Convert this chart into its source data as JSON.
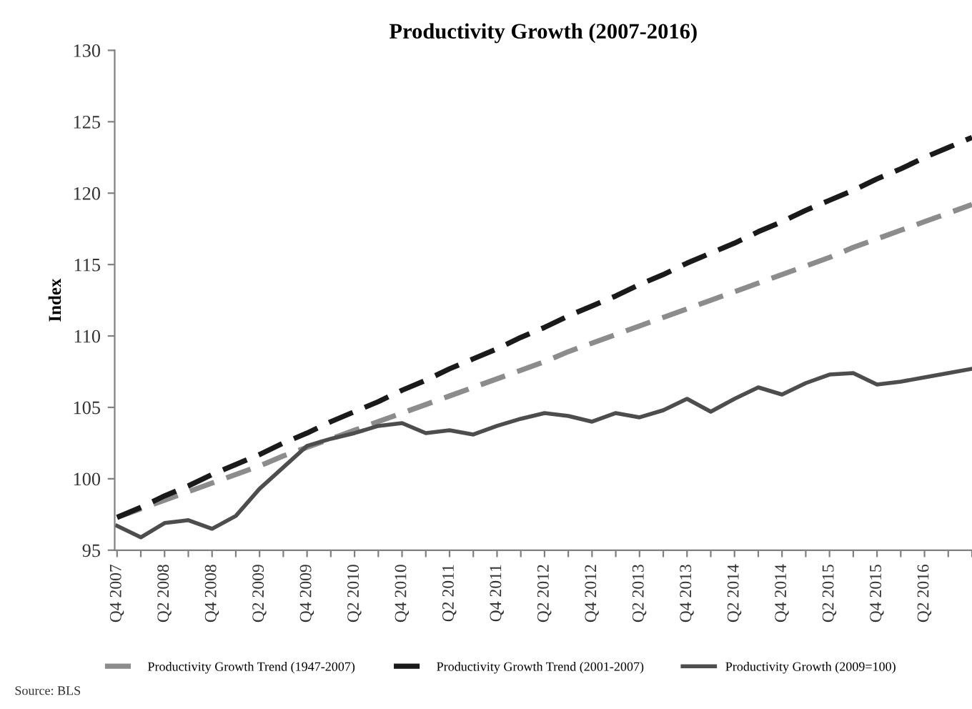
{
  "chart_data": {
    "type": "line",
    "title": "Productivity Growth (2007-2016)",
    "ylabel": "Index",
    "categories": [
      "Q4 2007",
      null,
      "Q2 2008",
      null,
      "Q4 2008",
      null,
      "Q2 2009",
      null,
      "Q4 2009",
      null,
      "Q2 2010",
      null,
      "Q4 2010",
      null,
      "Q2 2011",
      null,
      "Q4 2011",
      null,
      "Q2 2012",
      null,
      "Q4 2012",
      null,
      "Q2 2013",
      null,
      "Q4 2013",
      null,
      "Q2 2014",
      null,
      "Q4 2014",
      null,
      "Q2 2015",
      null,
      "Q4 2015",
      null,
      "Q2 2016",
      null,
      null
    ],
    "series": [
      {
        "name": "Productivity Growth Trend (1947-2007)",
        "color": "#8c8c8c",
        "line_style": "dashed",
        "values": [
          97.3,
          97.9,
          98.5,
          99.1,
          99.7,
          100.3,
          100.9,
          101.6,
          102.2,
          102.8,
          103.4,
          104.0,
          104.6,
          105.2,
          105.8,
          106.4,
          107.0,
          107.6,
          108.2,
          108.9,
          109.5,
          110.1,
          110.7,
          111.3,
          111.9,
          112.5,
          113.1,
          113.7,
          114.3,
          114.9,
          115.5,
          116.2,
          116.8,
          117.4,
          118.0,
          118.6,
          119.2
        ]
      },
      {
        "name": "Productivity Growth Trend (2001-2007)",
        "color": "#1a1a1a",
        "line_style": "dashed",
        "values": [
          97.3,
          98.0,
          98.8,
          99.5,
          100.3,
          101.0,
          101.7,
          102.5,
          103.2,
          104.0,
          104.7,
          105.4,
          106.2,
          106.9,
          107.7,
          108.4,
          109.1,
          109.9,
          110.6,
          111.4,
          112.1,
          112.8,
          113.6,
          114.3,
          115.1,
          115.8,
          116.5,
          117.3,
          118.0,
          118.8,
          119.5,
          120.2,
          121.0,
          121.7,
          122.5,
          123.2,
          123.9
        ]
      },
      {
        "name": "Productivity Growth (2009=100)",
        "color": "#4d4d4d",
        "line_style": "solid",
        "values": [
          96.7,
          95.9,
          96.9,
          97.1,
          96.5,
          97.4,
          99.3,
          100.8,
          102.3,
          102.8,
          103.2,
          103.7,
          103.9,
          103.2,
          103.4,
          103.1,
          103.7,
          104.2,
          104.6,
          104.4,
          104.0,
          104.6,
          104.3,
          104.8,
          105.6,
          104.7,
          105.6,
          106.4,
          105.9,
          106.7,
          107.3,
          107.4,
          106.6,
          106.8,
          107.1,
          107.4,
          107.7
        ]
      }
    ],
    "ylim": [
      95,
      130
    ],
    "yticks": [
      95,
      100,
      105,
      110,
      115,
      120,
      125,
      130
    ],
    "grid": false,
    "legend": "bottom",
    "annotations": [
      "Source: BLS"
    ]
  }
}
